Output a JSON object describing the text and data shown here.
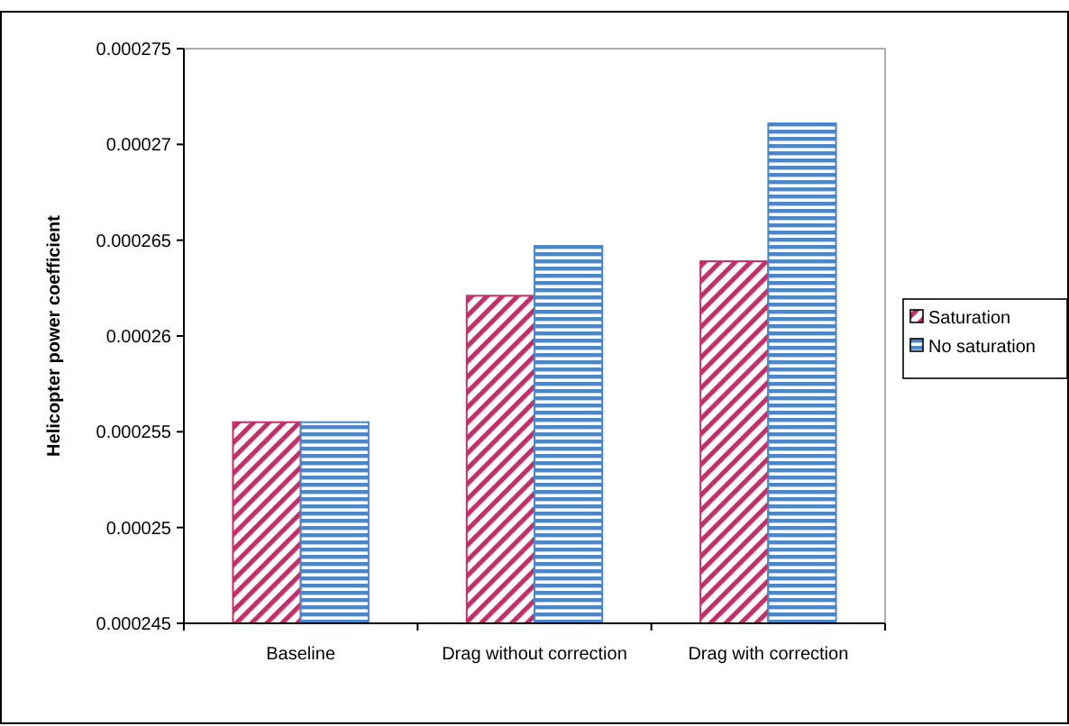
{
  "chart_data": {
    "type": "bar",
    "ylabel": "Helicopter power coefficient",
    "categories": [
      "Baseline",
      "Drag without correction",
      "Drag with correction"
    ],
    "series": [
      {
        "name": "Saturation",
        "color": "#c0306a",
        "values": [
          0.0002555,
          0.0002621,
          0.0002639
        ]
      },
      {
        "name": "No saturation",
        "color": "#4a86c8",
        "values": [
          0.0002555,
          0.0002647,
          0.0002711
        ]
      }
    ],
    "ylim": [
      0.000245,
      0.000275
    ],
    "yticks": [
      0.000245,
      0.00025,
      0.000255,
      0.00026,
      0.000265,
      0.00027,
      0.000275
    ],
    "grid": false,
    "legend": "right"
  }
}
